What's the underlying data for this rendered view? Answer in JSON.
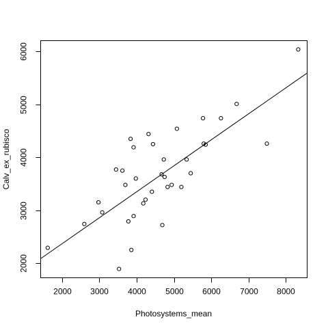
{
  "chart_data": {
    "type": "scatter",
    "title": "",
    "xlabel": "Photosystems_mean",
    "ylabel": "Calv_ex_rubisco",
    "xlim": [
      1440,
      8560
    ],
    "ylim": [
      1730,
      6200
    ],
    "xticks": [
      2000,
      3000,
      4000,
      5000,
      6000,
      7000,
      8000
    ],
    "yticks": [
      2000,
      3000,
      4000,
      5000,
      6000
    ],
    "grid": false,
    "legend": "none",
    "points": [
      {
        "x": 1620,
        "y": 2290
      },
      {
        "x": 2600,
        "y": 2740
      },
      {
        "x": 2980,
        "y": 3150
      },
      {
        "x": 3080,
        "y": 2960
      },
      {
        "x": 3450,
        "y": 3770
      },
      {
        "x": 3530,
        "y": 1890
      },
      {
        "x": 3620,
        "y": 3750
      },
      {
        "x": 3700,
        "y": 3480
      },
      {
        "x": 3780,
        "y": 2790
      },
      {
        "x": 3840,
        "y": 4350
      },
      {
        "x": 3860,
        "y": 2250
      },
      {
        "x": 3920,
        "y": 4190
      },
      {
        "x": 3920,
        "y": 2890
      },
      {
        "x": 3980,
        "y": 3600
      },
      {
        "x": 4180,
        "y": 3130
      },
      {
        "x": 4240,
        "y": 3200
      },
      {
        "x": 4320,
        "y": 4440
      },
      {
        "x": 4410,
        "y": 3350
      },
      {
        "x": 4440,
        "y": 4250
      },
      {
        "x": 4670,
        "y": 3680
      },
      {
        "x": 4690,
        "y": 2720
      },
      {
        "x": 4730,
        "y": 3960
      },
      {
        "x": 4750,
        "y": 3630
      },
      {
        "x": 4830,
        "y": 3440
      },
      {
        "x": 4940,
        "y": 3480
      },
      {
        "x": 5080,
        "y": 4540
      },
      {
        "x": 5200,
        "y": 3440
      },
      {
        "x": 5340,
        "y": 3960
      },
      {
        "x": 5450,
        "y": 3700
      },
      {
        "x": 5780,
        "y": 4740
      },
      {
        "x": 5800,
        "y": 4260
      },
      {
        "x": 5850,
        "y": 4240
      },
      {
        "x": 6260,
        "y": 4740
      },
      {
        "x": 6680,
        "y": 5010
      },
      {
        "x": 7490,
        "y": 4260
      },
      {
        "x": 8330,
        "y": 6040
      }
    ],
    "fit_line": {
      "x": [
        1440,
        8560
      ],
      "y": [
        2090,
        5590
      ]
    }
  }
}
